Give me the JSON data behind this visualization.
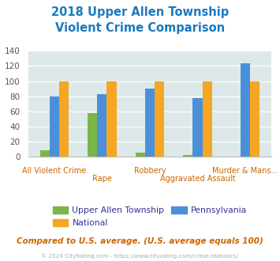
{
  "title": "2018 Upper Allen Township\nViolent Crime Comparison",
  "categories": [
    "All Violent Crime",
    "Rape",
    "Robbery",
    "Aggravated Assault",
    "Murder & Mans..."
  ],
  "series": {
    "Upper Allen Township": [
      8,
      58,
      5,
      2,
      0
    ],
    "Pennsylvania": [
      80,
      83,
      90,
      77,
      124
    ],
    "National": [
      100,
      100,
      100,
      100,
      100
    ]
  },
  "colors": {
    "Upper Allen Township": "#7ab648",
    "National": "#f5a623",
    "Pennsylvania": "#4a90d9"
  },
  "ylim": [
    0,
    140
  ],
  "yticks": [
    0,
    20,
    40,
    60,
    80,
    100,
    120,
    140
  ],
  "title_color": "#1a7abf",
  "title_fontsize": 10.5,
  "bg_color": "#dde8e8",
  "footer_text": "Compared to U.S. average. (U.S. average equals 100)",
  "footer_color": "#cc6600",
  "copyright_text": "© 2024 CityRating.com - https://www.cityrating.com/crime-statistics/",
  "copyright_color": "#aaaaaa",
  "xlabel_color": "#cc6600",
  "xlabel_fontsize": 7.0,
  "bar_width": 0.2,
  "legend_label_color": "#333399"
}
